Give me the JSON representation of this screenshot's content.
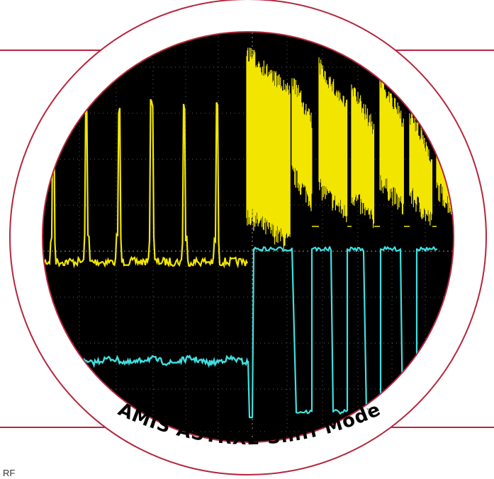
{
  "caption": {
    "text": "AMIS ASTRX2 Sniff Mode",
    "trademark": "™"
  },
  "corner_label": "RF",
  "colors": {
    "frame_line": "#b5263e",
    "lens_ring": "#b5263e",
    "lens_fill": "#ffffff",
    "screen_background": "#000000",
    "grid": "#9a9a9a",
    "trace_yellow": "#f2e600",
    "trace_cyan": "#3fe0e0",
    "caption_text": "#000000"
  },
  "oscilloscope": {
    "channels": [
      {
        "name": "yellow-trace",
        "color": "#f2e600"
      },
      {
        "name": "cyan-trace",
        "color": "#3fe0e0"
      }
    ],
    "grid": true
  }
}
